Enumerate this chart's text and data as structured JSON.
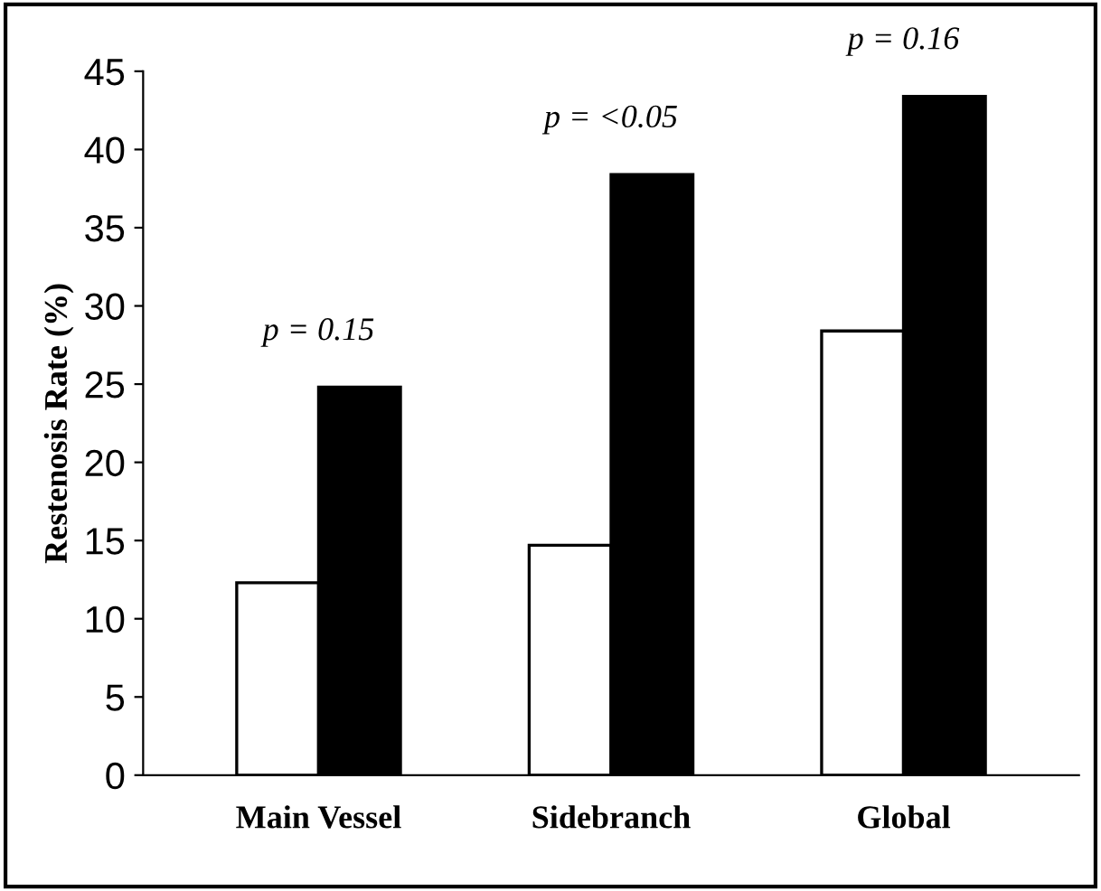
{
  "chart_data": {
    "type": "bar",
    "ylabel": "Restenosis Rate (%)",
    "categories": [
      "Main Vessel",
      "Sidebranch",
      "Global"
    ],
    "series": [
      {
        "color": "#ffffff",
        "values": [
          12.3,
          14.7,
          28.4
        ]
      },
      {
        "color": "#000000",
        "values": [
          24.8,
          38.4,
          43.4
        ]
      }
    ],
    "ylim": [
      0,
      45
    ],
    "yticks": [
      0,
      5,
      10,
      15,
      20,
      25,
      30,
      35,
      40,
      45
    ],
    "grid": false,
    "legend": false,
    "annotations": [
      "p = 0.15",
      "p = <0.05",
      "p = 0.16"
    ]
  }
}
